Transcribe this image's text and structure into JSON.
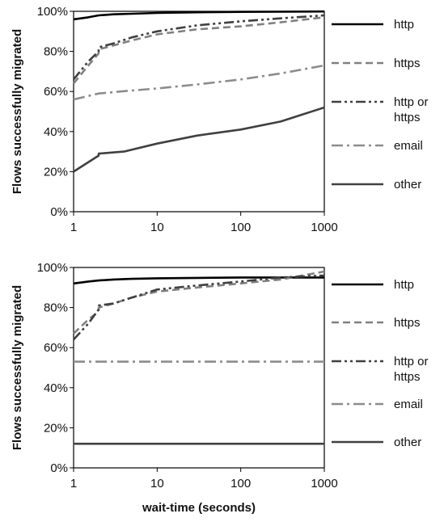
{
  "chart_data": [
    {
      "type": "line",
      "title": "",
      "xlabel": "",
      "ylabel": "Flows successfully migrated",
      "xscale": "log",
      "xlim": [
        1,
        1000
      ],
      "ylim": [
        0,
        100
      ],
      "xticks": [
        "1",
        "10",
        "100",
        "1000"
      ],
      "yticks": [
        "0%",
        "20%",
        "40%",
        "60%",
        "80%",
        "100%"
      ],
      "grid": false,
      "legend_position": "right",
      "series": [
        {
          "name": "http",
          "color": "#000000",
          "dash": "solid",
          "x": [
            1,
            1.5,
            2,
            3,
            5,
            10,
            30,
            100,
            300,
            1000
          ],
          "y": [
            96,
            97,
            98,
            98.5,
            98.8,
            99.2,
            99.5,
            99.7,
            99.8,
            99.9
          ]
        },
        {
          "name": "https",
          "color": "#808080",
          "dash": "dash",
          "x": [
            1,
            1.5,
            1.99,
            2,
            3,
            5,
            10,
            30,
            100,
            300,
            1000
          ],
          "y": [
            64,
            73,
            79,
            81,
            83,
            85.5,
            88.5,
            91,
            92.5,
            94.5,
            97
          ]
        },
        {
          "name": "http or\nhttps",
          "color": "#404040",
          "dash": "dashdotdot",
          "x": [
            1,
            1.5,
            1.99,
            2,
            3,
            5,
            10,
            30,
            100,
            300,
            1000
          ],
          "y": [
            66,
            75,
            80,
            82,
            84,
            87,
            90,
            93,
            95,
            96.5,
            98
          ]
        },
        {
          "name": "email",
          "color": "#8c8c8c",
          "dash": "dashdot",
          "x": [
            1,
            2,
            5,
            10,
            30,
            100,
            300,
            1000
          ],
          "y": [
            56,
            59,
            60.5,
            61.5,
            63.5,
            66,
            69,
            73
          ]
        },
        {
          "name": "other",
          "color": "#404040",
          "dash": "solid",
          "x": [
            1,
            1.99,
            2,
            4,
            10,
            30,
            100,
            300,
            1000
          ],
          "y": [
            20,
            28,
            29,
            30,
            34,
            38,
            41,
            45,
            52
          ]
        }
      ]
    },
    {
      "type": "line",
      "title": "",
      "xlabel": "wait-time (seconds)",
      "ylabel": "Flows successfully migrated",
      "xscale": "log",
      "xlim": [
        1,
        1000
      ],
      "ylim": [
        0,
        100
      ],
      "xticks": [
        "1",
        "10",
        "100",
        "1000"
      ],
      "yticks": [
        "0%",
        "20%",
        "40%",
        "60%",
        "80%",
        "100%"
      ],
      "grid": false,
      "legend_position": "right",
      "series": [
        {
          "name": "http",
          "color": "#000000",
          "dash": "solid",
          "x": [
            1,
            1.5,
            2,
            3,
            5,
            10,
            30,
            100,
            300,
            1000
          ],
          "y": [
            92,
            93,
            93.5,
            94,
            94.3,
            94.6,
            94.8,
            95,
            95,
            95
          ]
        },
        {
          "name": "https",
          "color": "#808080",
          "dash": "dash",
          "x": [
            1,
            1.5,
            1.99,
            2,
            3,
            5,
            10,
            30,
            100,
            300,
            1000
          ],
          "y": [
            67,
            74,
            78,
            80,
            82,
            85,
            88,
            90,
            92,
            94,
            98
          ]
        },
        {
          "name": "http or\nhttps",
          "color": "#404040",
          "dash": "dashdotdot",
          "x": [
            1,
            1.5,
            1.99,
            2,
            3,
            5,
            10,
            30,
            100,
            300,
            1000
          ],
          "y": [
            64,
            72,
            79,
            81,
            82,
            85,
            89,
            91,
            93,
            95,
            96
          ]
        },
        {
          "name": "email",
          "color": "#8c8c8c",
          "dash": "dashdot",
          "x": [
            1,
            1000
          ],
          "y": [
            53,
            53
          ]
        },
        {
          "name": "other",
          "color": "#404040",
          "dash": "solid",
          "x": [
            1,
            1000
          ],
          "y": [
            12,
            12
          ]
        }
      ]
    }
  ]
}
